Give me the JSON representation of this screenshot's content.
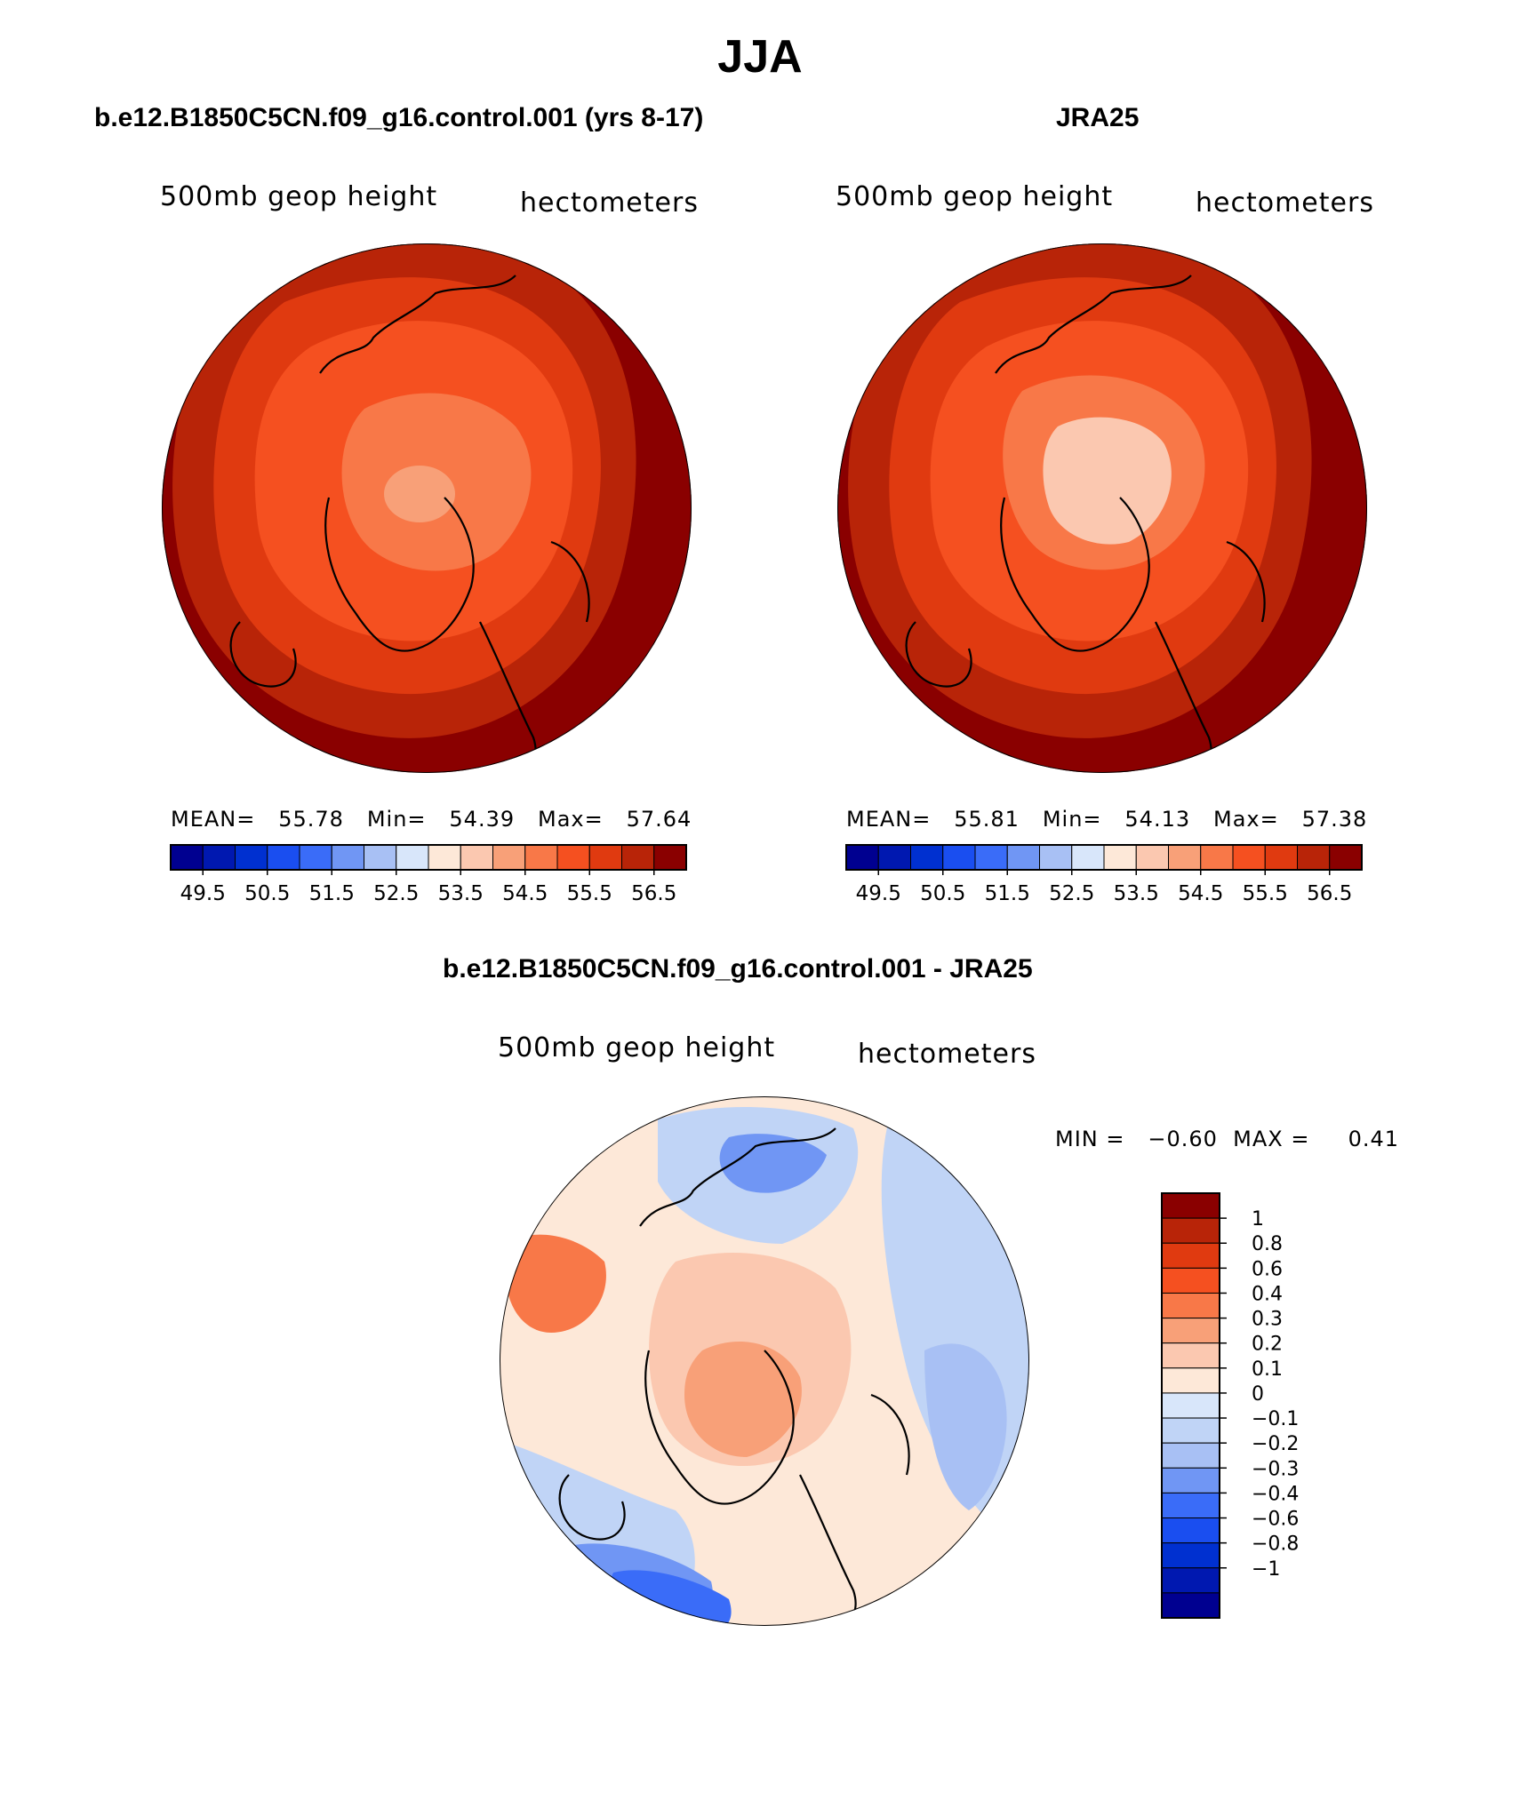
{
  "figure": {
    "title": "JJA"
  },
  "panels": [
    {
      "id": "model",
      "title": "b.e12.B1850C5CN.f09_g16.control.001 (yrs 8-17)",
      "left_label": "500mb geop height",
      "right_label": "hectometers",
      "stats_text": "MEAN=   55.78   Min=   54.39   Max=   57.64",
      "mean": 55.78,
      "min": 54.39,
      "max": 57.64
    },
    {
      "id": "obs",
      "title": "JRA25",
      "left_label": "500mb geop height",
      "right_label": "hectometers",
      "stats_text": "MEAN=   55.81   Min=   54.13   Max=   57.38",
      "mean": 55.81,
      "min": 54.13,
      "max": 57.38
    },
    {
      "id": "diff",
      "title": "b.e12.B1850C5CN.f09_g16.control.001 - JRA25",
      "left_label": "500mb geop height",
      "right_label": "hectometers",
      "stats_text": "MIN =   −0.60  MAX =     0.41",
      "min": -0.6,
      "max": 0.41
    }
  ],
  "colorbars": {
    "absolute": {
      "colors": [
        "#000090",
        "#0018b0",
        "#0030d0",
        "#1a4ef0",
        "#3a6cf8",
        "#7096f4",
        "#a8c0f4",
        "#d8e6fa",
        "#fde8d8",
        "#fbc8b0",
        "#f8a078",
        "#f87848",
        "#f55020",
        "#e03a10",
        "#b82408",
        "#8a0000"
      ],
      "tick_labels": [
        "49.5",
        "50.5",
        "51.5",
        "52.5",
        "53.5",
        "54.5",
        "55.5",
        "56.5"
      ]
    },
    "difference": {
      "colors": [
        "#8a0000",
        "#b82408",
        "#e03a10",
        "#f55020",
        "#f87848",
        "#f8a078",
        "#fbc8b0",
        "#fde8d8",
        "#d8e6fa",
        "#c0d4f6",
        "#a8c0f4",
        "#7096f4",
        "#3a6cf8",
        "#1a4ef0",
        "#0030d0",
        "#0018b0",
        "#000090"
      ],
      "tick_labels": [
        "1",
        "0.8",
        "0.6",
        "0.4",
        "0.3",
        "0.2",
        "0.1",
        "0",
        "−0.1",
        "−0.2",
        "−0.3",
        "−0.4",
        "−0.6",
        "−0.8",
        "−1"
      ]
    }
  },
  "map_colors": {
    "c57": "#8a0000",
    "c565": "#b82408",
    "c56": "#e03a10",
    "c555": "#f55020",
    "c55": "#f87848",
    "c545": "#f8a078",
    "c54": "#fbc8b0",
    "d_pos1": "#fde8d8",
    "d_pos2": "#fbc8b0",
    "d_pos3": "#f8a078",
    "d_pos4": "#f87848",
    "d_neg1": "#d8e6fa",
    "d_neg2": "#c0d4f6",
    "d_neg3": "#a8c0f4",
    "d_neg4": "#7096f4",
    "d_neg5": "#3a6cf8"
  }
}
